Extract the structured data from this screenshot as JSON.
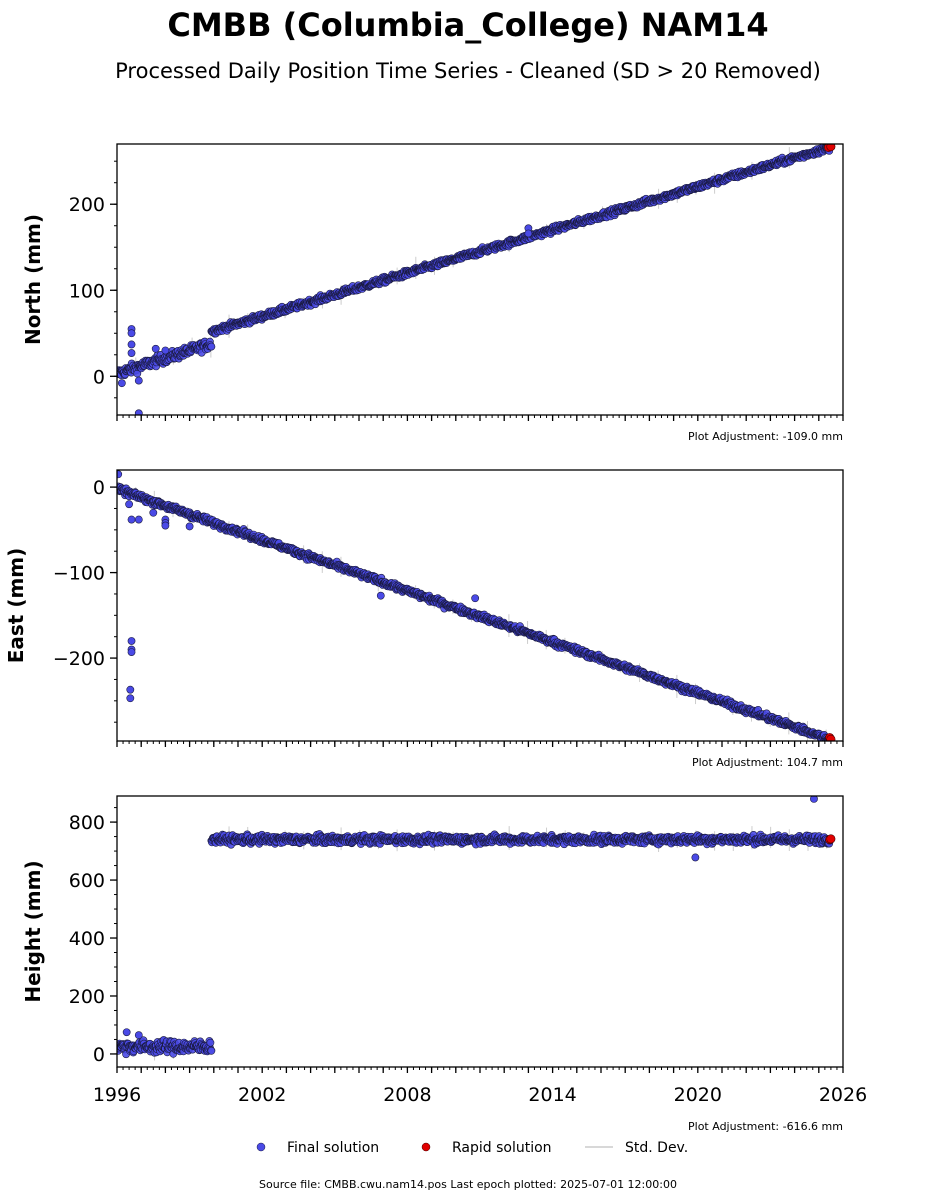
{
  "title": "CMBB (Columbia_College) NAM14",
  "subtitle": "Processed Daily Position Time Series - Cleaned (SD > 20 Removed)",
  "legend": {
    "final": "Final solution",
    "rapid": "Rapid solution",
    "sd": "Std. Dev."
  },
  "source": "Source file: CMBB.cwu.nam14.pos  Last epoch plotted: 2025-07-01 12:00:00",
  "colors": {
    "final": "#4a4ae6",
    "rapid": "#e00000",
    "edge": "#1a1a40",
    "sd": "#cccccc"
  },
  "chart_data": [
    {
      "type": "scatter",
      "ylabel": "North (mm)",
      "adjustment": "Plot Adjustment: -109.0 mm",
      "xlim": [
        1996,
        2026
      ],
      "ylim": [
        -45,
        270
      ],
      "yticks": [
        0,
        100,
        200
      ],
      "ytick_labels": [
        "0",
        "100",
        "200"
      ],
      "xticks": [
        1996,
        2002,
        2008,
        2014,
        2020,
        2026
      ],
      "xtick_labels": [],
      "segments": [
        {
          "x": [
            1996.0,
            1999.9
          ],
          "y": [
            3,
            38
          ],
          "noise": 4
        },
        {
          "x": [
            1999.9,
            2025.45
          ],
          "y": [
            52,
            266
          ],
          "noise": 2.5
        }
      ],
      "outliers": [
        {
          "x": 1996.6,
          "y": 55
        },
        {
          "x": 1996.6,
          "y": 50
        },
        {
          "x": 1996.6,
          "y": 37
        },
        {
          "x": 1996.6,
          "y": 27
        },
        {
          "x": 1996.9,
          "y": -43
        },
        {
          "x": 1996.9,
          "y": -5
        },
        {
          "x": 1996.2,
          "y": -8
        },
        {
          "x": 1997.6,
          "y": 32
        },
        {
          "x": 1998.0,
          "y": 30
        },
        {
          "x": 2013.0,
          "y": 172
        },
        {
          "x": 2013.0,
          "y": 166
        }
      ],
      "rapid": [
        {
          "x": 2025.4,
          "y": 266
        },
        {
          "x": 2025.5,
          "y": 267
        }
      ]
    },
    {
      "type": "scatter",
      "ylabel": "East (mm)",
      "adjustment": "Plot Adjustment: 104.7 mm",
      "xlim": [
        1996,
        2026
      ],
      "ylim": [
        -297,
        20
      ],
      "yticks": [
        0,
        -100,
        -200
      ],
      "ytick_labels": [
        "0",
        "−100",
        "−200"
      ],
      "xticks": [
        1996,
        2002,
        2008,
        2014,
        2020,
        2026
      ],
      "xtick_labels": [],
      "segments": [
        {
          "x": [
            1996.0,
            2025.45
          ],
          "y": [
            -2,
            -295
          ],
          "noise": 2.5
        }
      ],
      "outliers": [
        {
          "x": 1996.05,
          "y": 15
        },
        {
          "x": 1996.6,
          "y": -38
        },
        {
          "x": 1996.5,
          "y": -20
        },
        {
          "x": 1996.9,
          "y": -38
        },
        {
          "x": 1996.6,
          "y": -180
        },
        {
          "x": 1996.6,
          "y": -190
        },
        {
          "x": 1996.6,
          "y": -193
        },
        {
          "x": 1996.55,
          "y": -237
        },
        {
          "x": 1996.55,
          "y": -247
        },
        {
          "x": 1997.5,
          "y": -30
        },
        {
          "x": 1998.0,
          "y": -38
        },
        {
          "x": 1998.0,
          "y": -42
        },
        {
          "x": 1998.0,
          "y": -45
        },
        {
          "x": 1999.0,
          "y": -46
        },
        {
          "x": 2006.9,
          "y": -127
        },
        {
          "x": 2010.8,
          "y": -130
        }
      ],
      "rapid": [
        {
          "x": 2025.45,
          "y": -293
        },
        {
          "x": 2025.5,
          "y": -295
        }
      ]
    },
    {
      "type": "scatter",
      "ylabel": "Height (mm)",
      "adjustment": "Plot Adjustment: -616.6 mm",
      "xlim": [
        1996,
        2026
      ],
      "ylim": [
        -45,
        890
      ],
      "yticks": [
        0,
        200,
        400,
        600,
        800
      ],
      "ytick_labels": [
        "0",
        "200",
        "400",
        "600",
        "800"
      ],
      "xticks": [
        1996,
        2002,
        2008,
        2014,
        2020,
        2026
      ],
      "xtick_labels": [
        "1996",
        "2002",
        "2008",
        "2014",
        "2020",
        "2026"
      ],
      "segments": [
        {
          "x": [
            1996.0,
            1999.9
          ],
          "y": [
            25,
            25
          ],
          "noise": 15
        },
        {
          "x": [
            1999.9,
            2025.45
          ],
          "y": [
            740,
            740
          ],
          "noise": 10
        }
      ],
      "outliers": [
        {
          "x": 2019.9,
          "y": 678
        },
        {
          "x": 2024.8,
          "y": 880
        },
        {
          "x": 1996.4,
          "y": 75
        },
        {
          "x": 1996.9,
          "y": 65
        }
      ],
      "rapid": [
        {
          "x": 2025.45,
          "y": 740
        },
        {
          "x": 2025.5,
          "y": 742
        }
      ]
    }
  ]
}
